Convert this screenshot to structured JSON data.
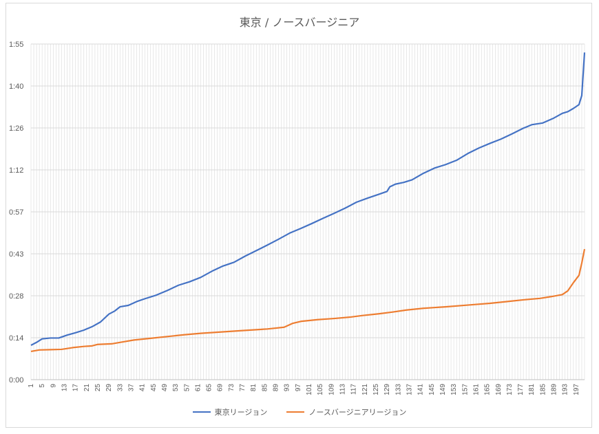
{
  "chart_data": {
    "type": "line",
    "title": "東京 / ノースバージニア",
    "xlabel": "",
    "ylabel": "",
    "x_tick_labels": [
      "1",
      "5",
      "9",
      "13",
      "17",
      "21",
      "25",
      "29",
      "33",
      "37",
      "41",
      "45",
      "49",
      "53",
      "57",
      "61",
      "65",
      "69",
      "73",
      "77",
      "81",
      "85",
      "89",
      "93",
      "97",
      "101",
      "105",
      "109",
      "113",
      "117",
      "121",
      "125",
      "129",
      "133",
      "137",
      "141",
      "145",
      "149",
      "153",
      "157",
      "161",
      "165",
      "169",
      "173",
      "177",
      "181",
      "185",
      "189",
      "193",
      "197"
    ],
    "x_range": [
      1,
      200
    ],
    "y_tick_labels": [
      "0:00",
      "0:14",
      "0:28",
      "0:43",
      "0:57",
      "1:12",
      "1:26",
      "1:40",
      "1:55"
    ],
    "y_tick_values": [
      0,
      14.4,
      28.8,
      43.2,
      57.6,
      72,
      86.4,
      100.8,
      115.2
    ],
    "ylim": [
      0,
      115.2
    ],
    "y_unit": "minutes (m:ss shown as h:mm style labels)",
    "grid": "vertical lines at every x, horizontal at y ticks",
    "legend_position": "bottom",
    "series": [
      {
        "name": "東京リージョン",
        "color": "#4472c4",
        "points": [
          [
            1,
            11.8
          ],
          [
            3,
            12.8
          ],
          [
            5,
            14.0
          ],
          [
            8,
            14.3
          ],
          [
            11,
            14.3
          ],
          [
            14,
            15.3
          ],
          [
            17,
            16.1
          ],
          [
            20,
            17.0
          ],
          [
            23,
            18.2
          ],
          [
            26,
            19.8
          ],
          [
            29,
            22.5
          ],
          [
            31,
            23.5
          ],
          [
            33,
            25.0
          ],
          [
            36,
            25.5
          ],
          [
            39,
            26.8
          ],
          [
            42,
            27.8
          ],
          [
            46,
            29.0
          ],
          [
            50,
            30.6
          ],
          [
            54,
            32.4
          ],
          [
            58,
            33.6
          ],
          [
            62,
            35.1
          ],
          [
            66,
            37.2
          ],
          [
            70,
            39.0
          ],
          [
            74,
            40.3
          ],
          [
            78,
            42.4
          ],
          [
            82,
            44.3
          ],
          [
            86,
            46.2
          ],
          [
            90,
            48.2
          ],
          [
            94,
            50.3
          ],
          [
            98,
            51.9
          ],
          [
            102,
            53.6
          ],
          [
            106,
            55.4
          ],
          [
            110,
            57.1
          ],
          [
            114,
            58.9
          ],
          [
            118,
            60.9
          ],
          [
            122,
            62.3
          ],
          [
            126,
            63.6
          ],
          [
            129,
            64.6
          ],
          [
            130,
            66.2
          ],
          [
            132,
            67.1
          ],
          [
            135,
            67.7
          ],
          [
            138,
            68.6
          ],
          [
            142,
            70.8
          ],
          [
            146,
            72.6
          ],
          [
            150,
            73.8
          ],
          [
            154,
            75.3
          ],
          [
            158,
            77.6
          ],
          [
            162,
            79.5
          ],
          [
            166,
            81.1
          ],
          [
            170,
            82.6
          ],
          [
            174,
            84.4
          ],
          [
            178,
            86.3
          ],
          [
            181,
            87.5
          ],
          [
            185,
            88.1
          ],
          [
            189,
            89.8
          ],
          [
            192,
            91.4
          ],
          [
            194,
            92.0
          ],
          [
            196,
            93.1
          ],
          [
            198,
            94.4
          ],
          [
            199,
            97.5
          ],
          [
            200,
            112.3
          ]
        ]
      },
      {
        "name": "ノースバージニアリージョン",
        "color": "#ed7d31",
        "points": [
          [
            1,
            9.7
          ],
          [
            4,
            10.2
          ],
          [
            8,
            10.3
          ],
          [
            12,
            10.4
          ],
          [
            16,
            11.0
          ],
          [
            20,
            11.4
          ],
          [
            23,
            11.6
          ],
          [
            25,
            12.1
          ],
          [
            30,
            12.3
          ],
          [
            33,
            12.8
          ],
          [
            38,
            13.6
          ],
          [
            44,
            14.2
          ],
          [
            50,
            14.8
          ],
          [
            56,
            15.4
          ],
          [
            62,
            15.9
          ],
          [
            70,
            16.4
          ],
          [
            78,
            16.9
          ],
          [
            86,
            17.4
          ],
          [
            92,
            18.0
          ],
          [
            95,
            19.3
          ],
          [
            98,
            20.0
          ],
          [
            104,
            20.6
          ],
          [
            110,
            21.0
          ],
          [
            116,
            21.5
          ],
          [
            120,
            22.0
          ],
          [
            126,
            22.6
          ],
          [
            131,
            23.2
          ],
          [
            136,
            23.9
          ],
          [
            142,
            24.5
          ],
          [
            150,
            25.0
          ],
          [
            158,
            25.6
          ],
          [
            166,
            26.2
          ],
          [
            172,
            26.8
          ],
          [
            178,
            27.4
          ],
          [
            184,
            27.9
          ],
          [
            188,
            28.5
          ],
          [
            192,
            29.2
          ],
          [
            194,
            30.5
          ],
          [
            196,
            33.3
          ],
          [
            198,
            35.8
          ],
          [
            199,
            40.0
          ],
          [
            200,
            44.8
          ]
        ]
      }
    ]
  }
}
